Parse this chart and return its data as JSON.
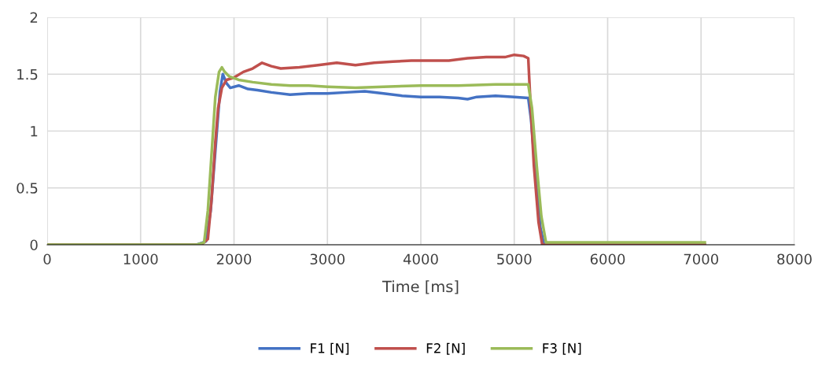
{
  "chart_data": {
    "type": "line",
    "xlabel": "Time [ms]",
    "xlim": [
      0,
      8000
    ],
    "xticks": [
      0,
      1000,
      2000,
      3000,
      4000,
      5000,
      6000,
      7000,
      8000
    ],
    "ylim": [
      0,
      2
    ],
    "yticks": [
      0,
      0.5,
      1,
      1.5,
      2
    ],
    "grid": true,
    "legend": "bottom",
    "marker": "none",
    "line_style": "solid",
    "series": [
      {
        "name": "F1 [N]",
        "color": "#4472c4",
        "x": [
          0,
          1000,
          1600,
          1700,
          1750,
          1850,
          1880,
          1920,
          1960,
          2050,
          2150,
          2250,
          2400,
          2600,
          2800,
          3000,
          3200,
          3400,
          3600,
          3800,
          4000,
          4200,
          4400,
          4500,
          4600,
          4800,
          5000,
          5150,
          5180,
          5230,
          5280,
          5320,
          6000,
          7040
        ],
        "values": [
          0,
          0,
          0,
          0.03,
          0.3,
          1.35,
          1.5,
          1.42,
          1.38,
          1.4,
          1.37,
          1.36,
          1.34,
          1.32,
          1.33,
          1.33,
          1.34,
          1.35,
          1.33,
          1.31,
          1.3,
          1.3,
          1.29,
          1.28,
          1.3,
          1.31,
          1.3,
          1.29,
          1.1,
          0.6,
          0.15,
          0,
          0,
          0
        ]
      },
      {
        "name": "F2 [N]",
        "color": "#c0504d",
        "x": [
          0,
          1000,
          1650,
          1720,
          1760,
          1800,
          1830,
          1870,
          1920,
          2000,
          2100,
          2200,
          2300,
          2400,
          2500,
          2700,
          2900,
          3100,
          3300,
          3500,
          3700,
          3900,
          4100,
          4300,
          4500,
          4700,
          4900,
          5000,
          5100,
          5150,
          5170,
          5210,
          5260,
          5300,
          6000,
          7040
        ],
        "values": [
          0,
          0,
          0,
          0.05,
          0.4,
          0.9,
          1.2,
          1.38,
          1.45,
          1.47,
          1.52,
          1.55,
          1.6,
          1.57,
          1.55,
          1.56,
          1.58,
          1.6,
          1.58,
          1.6,
          1.61,
          1.62,
          1.62,
          1.62,
          1.64,
          1.65,
          1.65,
          1.67,
          1.66,
          1.64,
          1.3,
          0.7,
          0.2,
          0,
          0,
          0
        ]
      },
      {
        "name": "F3 [N]",
        "color": "#9bbb59",
        "x": [
          0,
          1000,
          1600,
          1680,
          1720,
          1760,
          1800,
          1840,
          1870,
          1900,
          1950,
          2050,
          2200,
          2400,
          2600,
          2800,
          3000,
          3300,
          3600,
          4000,
          4400,
          4800,
          5000,
          5150,
          5190,
          5240,
          5290,
          5340,
          6000,
          7040
        ],
        "values": [
          0,
          0,
          0,
          0.02,
          0.3,
          0.8,
          1.3,
          1.52,
          1.56,
          1.52,
          1.48,
          1.45,
          1.43,
          1.41,
          1.4,
          1.4,
          1.39,
          1.38,
          1.39,
          1.4,
          1.4,
          1.41,
          1.41,
          1.41,
          1.2,
          0.7,
          0.25,
          0.02,
          0.02,
          0.02
        ]
      }
    ]
  }
}
